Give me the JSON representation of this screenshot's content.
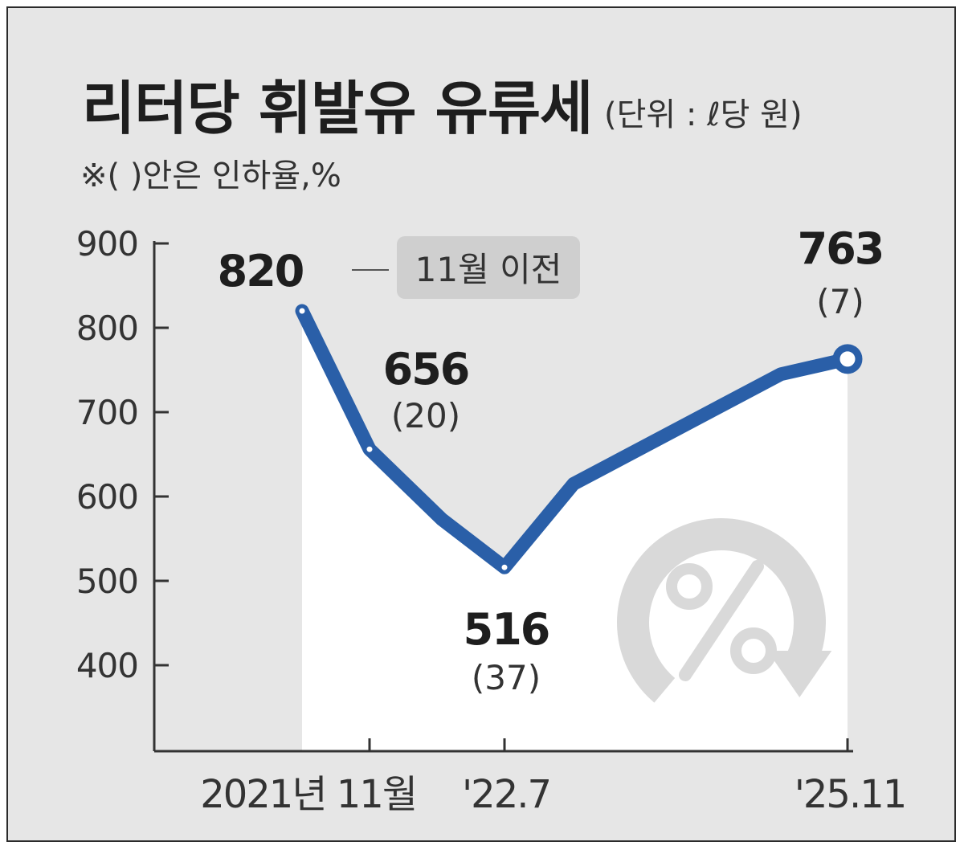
{
  "chart_data": {
    "type": "line",
    "title": "리터당 휘발유 유류세",
    "unit": "(단위 : ℓ당 원)",
    "note": "※(  )안은 인하율,%",
    "y_ticks": [
      "900",
      "800",
      "700",
      "600",
      "500",
      "400"
    ],
    "ylim": [
      300,
      900
    ],
    "x_labels": [
      {
        "label": "2021년 11월",
        "at": "2021-11"
      },
      {
        "label": "'22.7",
        "at": "2022-07"
      },
      {
        "label": "'25.11",
        "at": "2025-11"
      }
    ],
    "series": [
      {
        "points": [
          {
            "x": "2021-10",
            "y": 820
          },
          {
            "x": "2021-11",
            "y": 656
          },
          {
            "x": "2022-04",
            "y": 573
          },
          {
            "x": "2022-07",
            "y": 516
          },
          {
            "x": "2023-01",
            "y": 615
          },
          {
            "x": "2025-05",
            "y": 745
          },
          {
            "x": "2025-11",
            "y": 763
          }
        ]
      }
    ],
    "annotations": [
      {
        "x": "2021-10",
        "value": "820",
        "rate": "",
        "callout": "11월 이전"
      },
      {
        "x": "2021-11",
        "value": "656",
        "rate": "(20)",
        "callout": ""
      },
      {
        "x": "2022-07",
        "value": "516",
        "rate": "(37)",
        "callout": ""
      },
      {
        "x": "2025-11",
        "value": "763",
        "rate": "(7)",
        "callout": ""
      }
    ],
    "grid": false,
    "legend": "none"
  },
  "colors": {
    "background": "#e6e6e6",
    "line": "#2a5fa8",
    "area": "#ffffff",
    "text": "#1e1e1e",
    "watermark": "#d9d9d9"
  },
  "icons": {
    "watermark": "percent-cycle-icon"
  }
}
